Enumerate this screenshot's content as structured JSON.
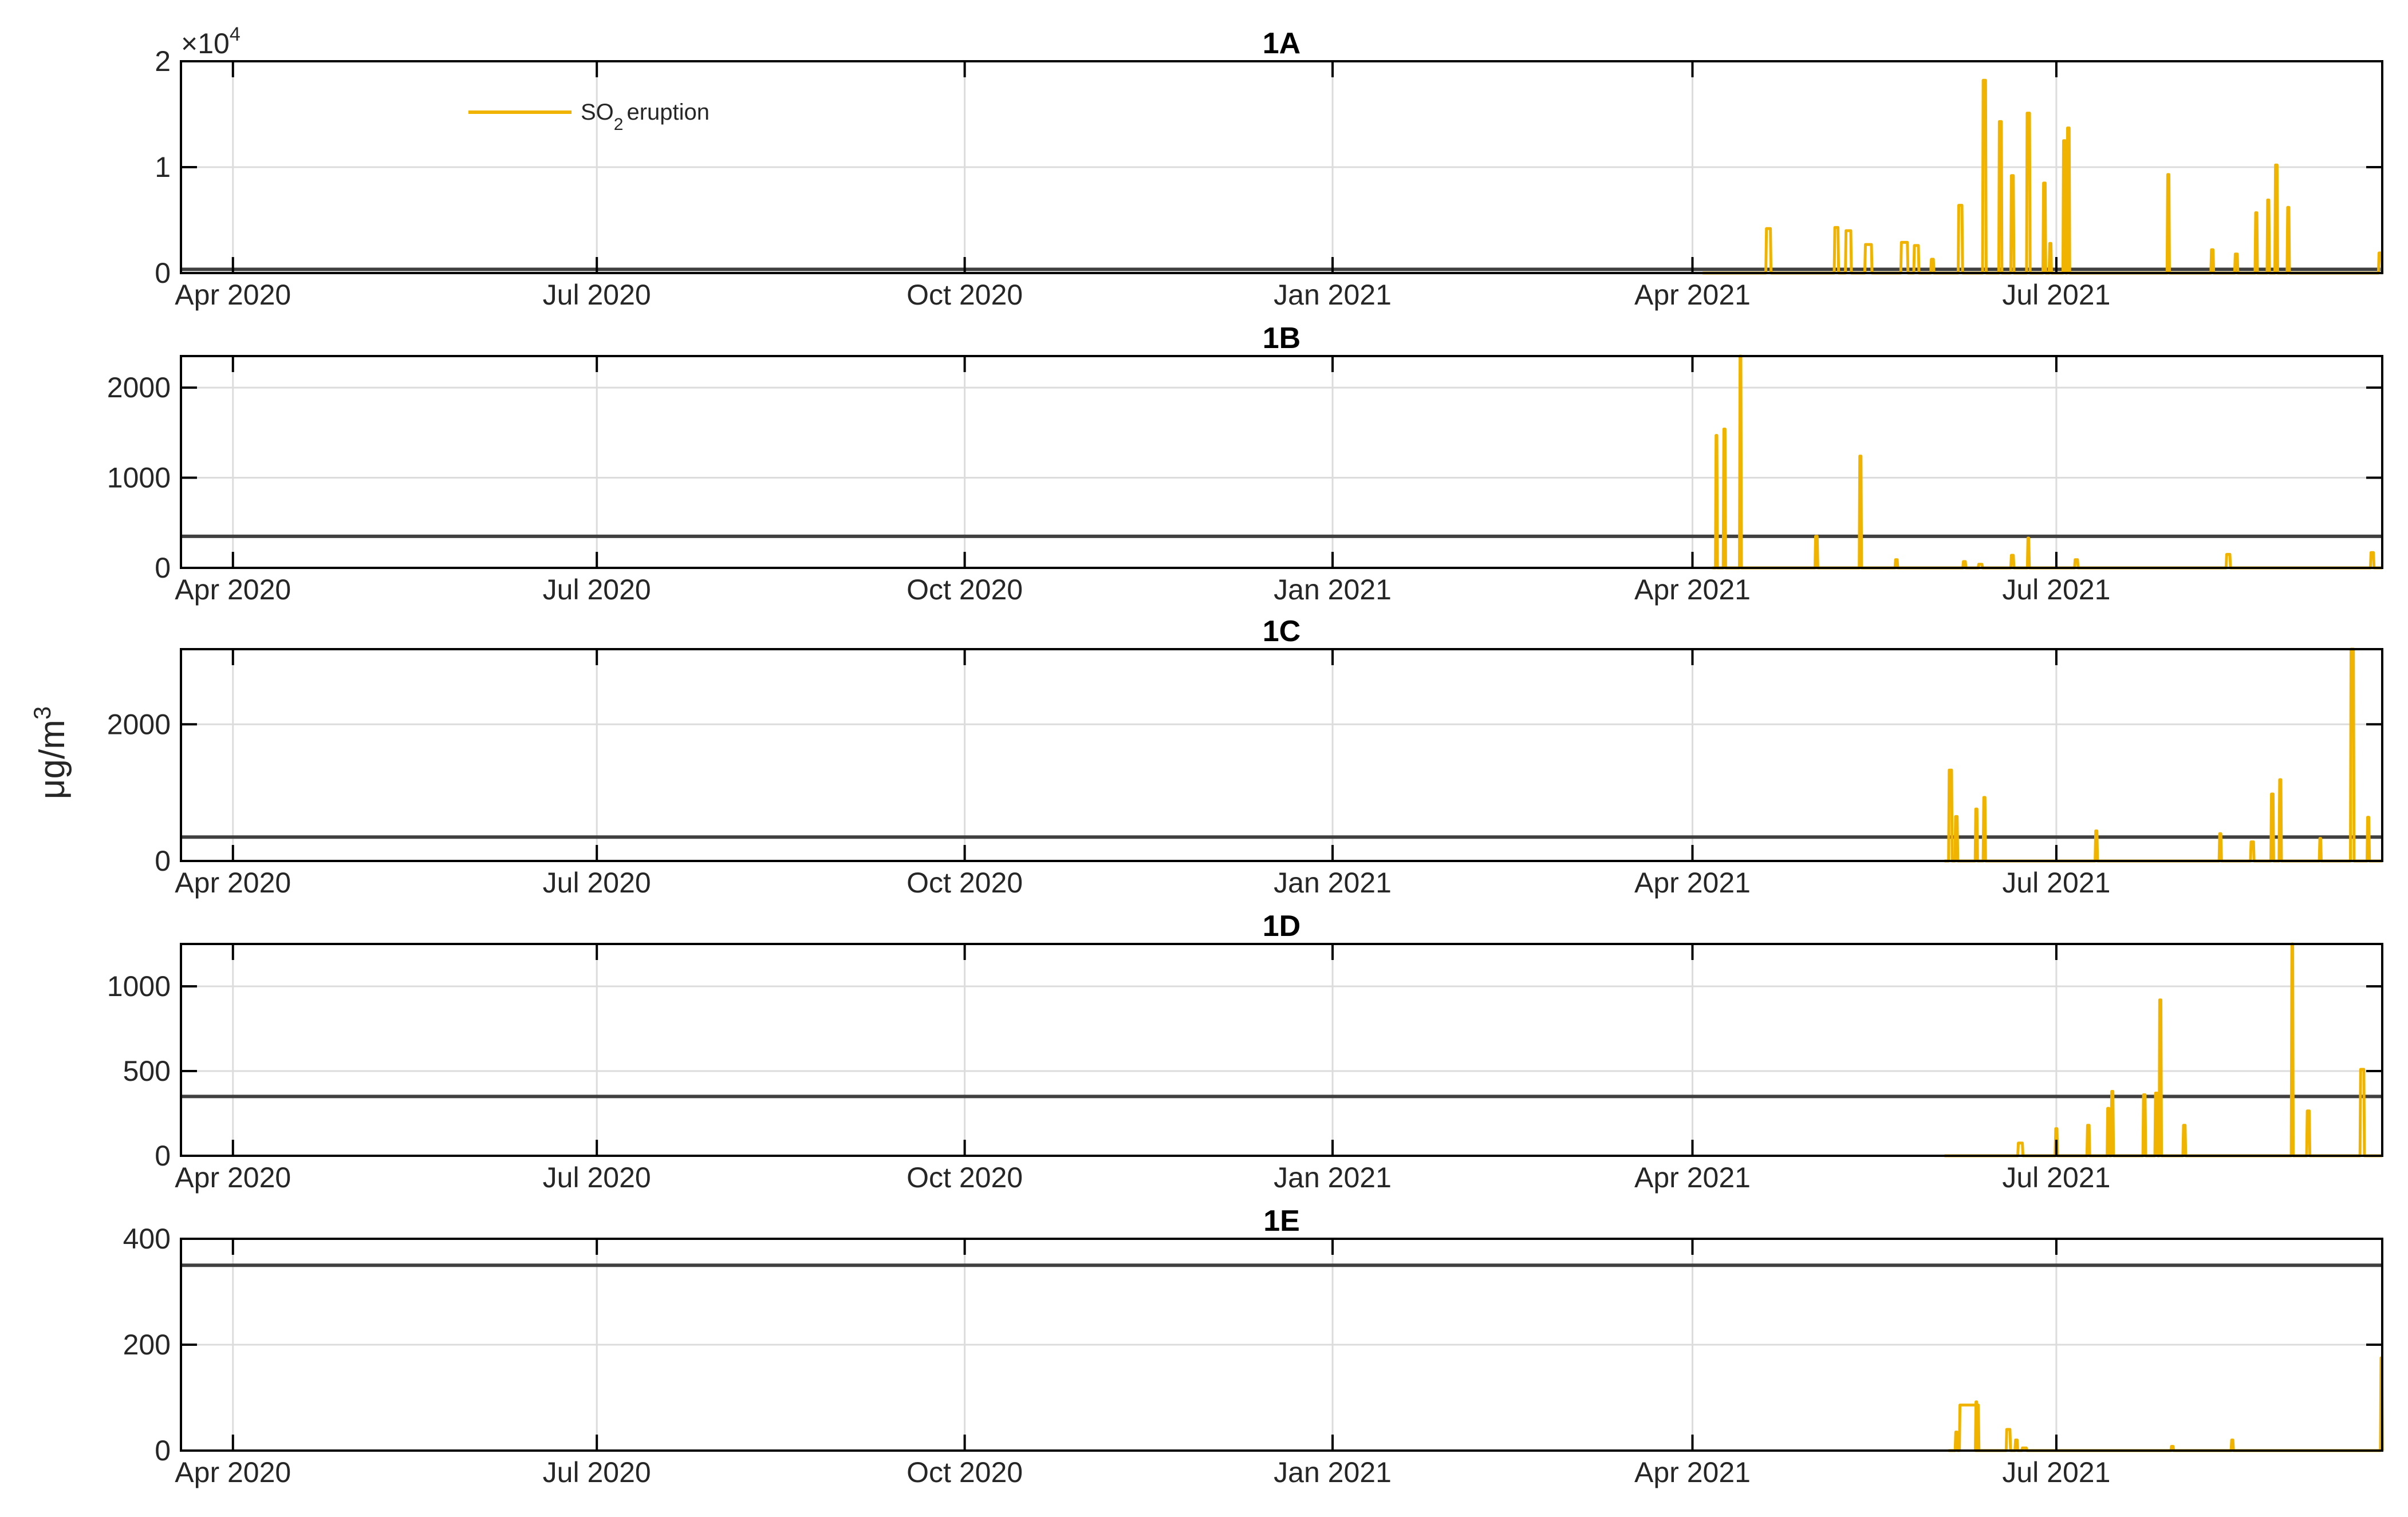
{
  "chart_data": {
    "type": "line",
    "x_unit": "days since 2020-04-01",
    "xlim": [
      -13,
      537.5
    ],
    "x_ticks": [
      {
        "day": 0,
        "label": "Apr 2020"
      },
      {
        "day": 91,
        "label": "Jul 2020"
      },
      {
        "day": 183,
        "label": "Oct 2020"
      },
      {
        "day": 275,
        "label": "Jan 2021"
      },
      {
        "day": 365,
        "label": "Apr 2021"
      },
      {
        "day": 456,
        "label": "Jul 2021"
      }
    ],
    "ylabel": {
      "text": "μg/m",
      "superscript": "3"
    },
    "legend": {
      "label": "SO",
      "subscript": "2",
      "label_rest": "eruption",
      "placement": "top-left"
    },
    "series_color": "#F0B400",
    "threshold_color": "#404040",
    "grid": true,
    "panels": [
      {
        "title": "1A",
        "ylim": [
          0,
          20000
        ],
        "yticks": [
          0,
          10000,
          20000
        ],
        "ytick_labels": [
          "0",
          "1",
          "2"
        ],
        "exponent_prefix": "×10",
        "exponent": "4",
        "threshold": 350,
        "data_start": 367.5,
        "data_end": 537.5,
        "peaks": [
          [
            384,
            4200,
            1
          ],
          [
            401,
            4300,
            0.8
          ],
          [
            404,
            4000,
            1.2
          ],
          [
            409,
            2700,
            1.5
          ],
          [
            418,
            2900,
            1.5
          ],
          [
            421,
            2600,
            1
          ],
          [
            425,
            1300,
            0.5
          ],
          [
            432,
            6400,
            0.8
          ],
          [
            438,
            18200,
            0.6
          ],
          [
            442,
            14300,
            0.5
          ],
          [
            445,
            9200,
            0.5
          ],
          [
            449,
            15100,
            0.6
          ],
          [
            453,
            8500,
            0.4
          ],
          [
            454.5,
            2800,
            0.3
          ],
          [
            458,
            12500,
            0.4
          ],
          [
            459,
            13700,
            0.4
          ],
          [
            484,
            9300,
            0.3
          ],
          [
            495,
            2200,
            0.4
          ],
          [
            501,
            1800,
            0.5
          ],
          [
            506,
            5700,
            0.3
          ],
          [
            509,
            6900,
            0.3
          ],
          [
            511,
            10200,
            0.4
          ],
          [
            514,
            6200,
            0.3
          ],
          [
            537,
            1900,
            0.6
          ]
        ]
      },
      {
        "title": "1B",
        "ylim": [
          0,
          2350
        ],
        "yticks": [
          0,
          1000,
          2000
        ],
        "ytick_labels": [
          "0",
          "1000",
          "2000"
        ],
        "threshold": 350,
        "data_start": 370,
        "data_end": 537.5,
        "peaks": [
          [
            371,
            1470,
            0.2
          ],
          [
            373,
            1540,
            0.3
          ],
          [
            377,
            2350,
            0.2
          ],
          [
            396,
            350,
            0.4
          ],
          [
            407,
            1240,
            0.3
          ],
          [
            416,
            90,
            0.4
          ],
          [
            433,
            70,
            0.5
          ],
          [
            437,
            40,
            0.8
          ],
          [
            445,
            140,
            0.5
          ],
          [
            449,
            330,
            0.2
          ],
          [
            461,
            90,
            0.6
          ],
          [
            499,
            150,
            0.8
          ],
          [
            535,
            170,
            0.6
          ]
        ]
      },
      {
        "title": "1C",
        "ylim": [
          0,
          3100
        ],
        "yticks": [
          0,
          2000
        ],
        "ytick_labels": [
          "0",
          "2000"
        ],
        "threshold": 350,
        "data_start": 428,
        "data_end": 537.5,
        "peaks": [
          [
            429.5,
            1330,
            0.6
          ],
          [
            431,
            650,
            0.4
          ],
          [
            436,
            760,
            0.3
          ],
          [
            438,
            930,
            0.3
          ],
          [
            466,
            440,
            0.3
          ],
          [
            497,
            400,
            0.3
          ],
          [
            505,
            280,
            0.6
          ],
          [
            510,
            980,
            0.4
          ],
          [
            512,
            1190,
            0.3
          ],
          [
            522,
            330,
            0.2
          ],
          [
            530,
            3100,
            0.6
          ],
          [
            534,
            640,
            0.3
          ]
        ]
      },
      {
        "title": "1D",
        "ylim": [
          0,
          1250
        ],
        "yticks": [
          0,
          500,
          1000
        ],
        "ytick_labels": [
          "0",
          "500",
          "1000"
        ],
        "threshold": 350,
        "data_start": 428,
        "data_end": 537.5,
        "peaks": [
          [
            447,
            75,
            1
          ],
          [
            456,
            160,
            0.3
          ],
          [
            464,
            180,
            0.4
          ],
          [
            469,
            280,
            0.3
          ],
          [
            470,
            380,
            0.3
          ],
          [
            478,
            360,
            0.4
          ],
          [
            481,
            370,
            0.4
          ],
          [
            482,
            920,
            0.3
          ],
          [
            488,
            180,
            0.4
          ],
          [
            515,
            1250,
            0.2
          ],
          [
            519,
            265,
            0.5
          ],
          [
            532.5,
            510,
            0.8
          ]
        ]
      },
      {
        "title": "1E",
        "ylim": [
          0,
          400
        ],
        "yticks": [
          0,
          200,
          400
        ],
        "ytick_labels": [
          "0",
          "200",
          "400"
        ],
        "threshold": 350,
        "data_start": 429,
        "data_end": 537.5,
        "peaks": [
          [
            431,
            35,
            0.3
          ],
          [
            434.2,
            86,
            4.6
          ],
          [
            436,
            92,
            0.2
          ],
          [
            444,
            40,
            0.8
          ],
          [
            446,
            20,
            0.4
          ],
          [
            448,
            5,
            1
          ],
          [
            485,
            8,
            0.4
          ],
          [
            500,
            20,
            0.3
          ],
          [
            537.3,
            175,
            0.2
          ]
        ]
      }
    ]
  }
}
